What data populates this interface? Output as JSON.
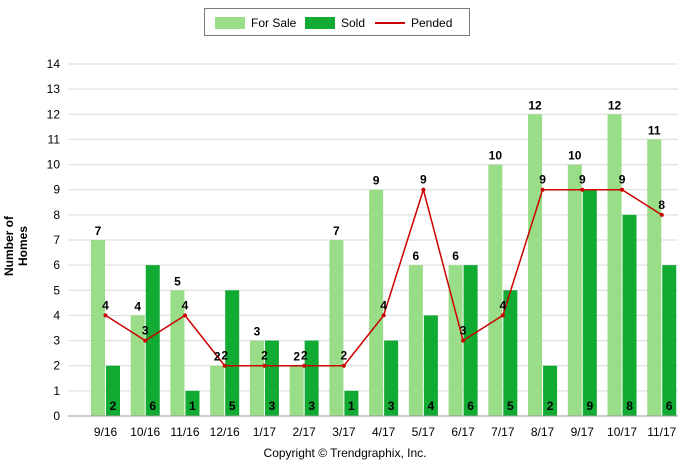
{
  "chart_data": {
    "type": "bar",
    "categories": [
      "9/16",
      "10/16",
      "11/16",
      "12/16",
      "1/17",
      "2/17",
      "3/17",
      "4/17",
      "5/17",
      "6/17",
      "7/17",
      "8/17",
      "9/17",
      "10/17",
      "11/17"
    ],
    "series": [
      {
        "name": "For Sale",
        "type": "bar",
        "color": "#99dd88",
        "values": [
          7,
          4,
          5,
          2,
          3,
          2,
          7,
          9,
          6,
          6,
          10,
          12,
          10,
          12,
          11
        ]
      },
      {
        "name": "Sold",
        "type": "bar",
        "color": "#11aa33",
        "values": [
          2,
          6,
          1,
          5,
          3,
          3,
          1,
          3,
          4,
          6,
          5,
          2,
          9,
          8,
          6
        ]
      },
      {
        "name": "Pended",
        "type": "line",
        "color": "#cc0000",
        "values": [
          4,
          3,
          4,
          2,
          2,
          2,
          2,
          4,
          9,
          3,
          4,
          9,
          9,
          9,
          8
        ]
      }
    ],
    "title": "",
    "xlabel": "",
    "ylabel": "Number of Homes",
    "ylim": [
      0,
      14
    ],
    "yticks": [
      0,
      1,
      2,
      3,
      4,
      5,
      6,
      7,
      8,
      9,
      10,
      11,
      12,
      13,
      14
    ],
    "grid": true,
    "legend": "top-center"
  },
  "footer": {
    "copyright": "Copyright © Trendgraphix, Inc."
  }
}
